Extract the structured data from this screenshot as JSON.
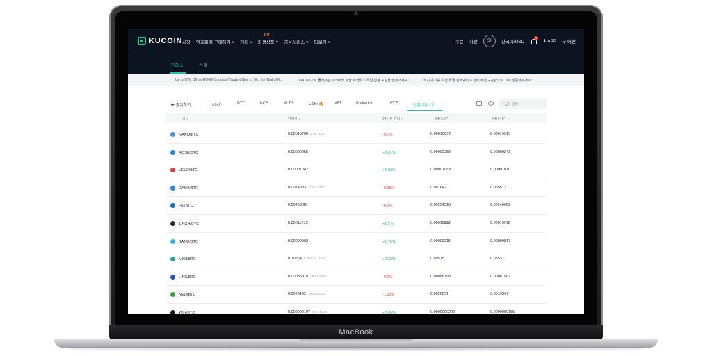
{
  "device": {
    "label": "MacBook"
  },
  "header": {
    "logo_text": "KUCOIN",
    "nav": [
      {
        "label": "시장"
      },
      {
        "label": "암호화폐 구매하기 ˅"
      },
      {
        "label": "거래 ˅"
      },
      {
        "label": "파생상품 ˅",
        "badge": "ETF"
      },
      {
        "label": "금융서비스 ˅"
      },
      {
        "label": "더보기 ˅"
      }
    ],
    "right": {
      "orders": "주문",
      "assets": "자산",
      "avatar": "SI",
      "lang": "한국어/USD",
      "bell_count": "1",
      "app": "⬇ APP",
      "more": "구 버전"
    }
  },
  "subnav": {
    "tabs": [
      "거래소",
      "선물"
    ],
    "active": 0
  },
  "ticker": [
    "Up to 90% Off on DOGE Contract! Trade it Now to Win the Trial of K...",
    "KuCoin으로 돌려주는 트레이딩 봇을 체험하고 특별 한정 보상을 받아가세요!",
    "복지 유저를 위한 특별 분배액! (5) 선택 세션 구성만으로 다시 방문해주세요."
  ],
  "market_tabs": {
    "favorites": "★ 즐겨찾기",
    "items": [
      "USDⓈ",
      "BTC",
      "KCS",
      "ALTS",
      "DeFi 🔥",
      "NFT",
      "Polkadot",
      "ETF",
      "현물 지수 ⓘ"
    ],
    "active_index": 8,
    "search_placeholder": "검색"
  },
  "table": {
    "headers": {
      "pair": "쌍 ↕",
      "price": "현재가 ↕",
      "change": "24시간 변화 ↕",
      "low": "24H 고가 ↕",
      "high": "24H 거가 ↕"
    },
    "rows": [
      {
        "pair": "NANO/BTC",
        "price": "0.00015700",
        "usd": "8.56 USD",
        "change": "-0.7%",
        "dir": "down",
        "low": "0.00016637",
        "high": "0.00014913",
        "color": "#4a90e2"
      },
      {
        "pair": "ROSE/BTC",
        "price": "0.00000255",
        "usd": "",
        "change": "+0.01%",
        "dir": "up",
        "low": "0.00000259",
        "high": "0.00000243",
        "color": "#1e88e5"
      },
      {
        "pair": "VELO/BTC",
        "price": "0.00001042",
        "usd": "",
        "change": "+1.88%",
        "dir": "up",
        "low": "0.00001083",
        "high": "0.00001010",
        "color": "#e53935"
      },
      {
        "pair": "DASH/BTC",
        "price": "0.0074083",
        "usd": "437.3 USD",
        "change": "-0.68%",
        "dir": "down",
        "low": "0.007642",
        "high": "0.005572",
        "color": "#1e88e5"
      },
      {
        "pair": "FIL/BTC",
        "price": "0.00250881",
        "usd": "",
        "change": "-0.5%",
        "dir": "down",
        "low": "0.00254318",
        "high": "0.00240602",
        "color": "#1976d2"
      },
      {
        "pair": "1INCH/BTC",
        "price": "0.00011672",
        "usd": "",
        "change": "+1.2%",
        "dir": "up",
        "low": "0.00011533",
        "high": "0.00010615",
        "color": "#263238"
      },
      {
        "pair": "SAND/BTC",
        "price": "0.00000902",
        "usd": "",
        "change": "+1.76%",
        "dir": "up",
        "low": "0.00000915",
        "high": "0.00000817",
        "color": "#29b6f6"
      },
      {
        "pair": "MKR/BTC",
        "price": "0.10254",
        "usd": "5,855.44 USD",
        "change": "+0.22%",
        "dir": "up",
        "low": "0.09575",
        "high": "0.08537",
        "color": "#26a69a"
      },
      {
        "pair": "LINK/BTC",
        "price": "0.00085978",
        "usd": "49.69 USD",
        "change": "-0.2%",
        "dir": "down",
        "low": "0.00086198",
        "high": "0.00081562",
        "color": "#1e4fd8"
      },
      {
        "pair": "NEO/BTC",
        "price": "0.0020142",
        "usd": "116.01 USD",
        "change": "-1.33%",
        "dir": "down",
        "low": "0.0020651",
        "high": "0.0019347",
        "color": "#43a047"
      },
      {
        "pair": "WIN/BTC",
        "price": "0.000000197",
        "usd": "0.01 USD",
        "change": "+0.55%",
        "dir": "up",
        "low": "0.0000000202",
        "high": "0.0000000185",
        "color": "#1a1a1a"
      }
    ]
  },
  "colors": {
    "accent": "#21c397",
    "down": "#f0433b",
    "header_bg": "#0d1421"
  }
}
